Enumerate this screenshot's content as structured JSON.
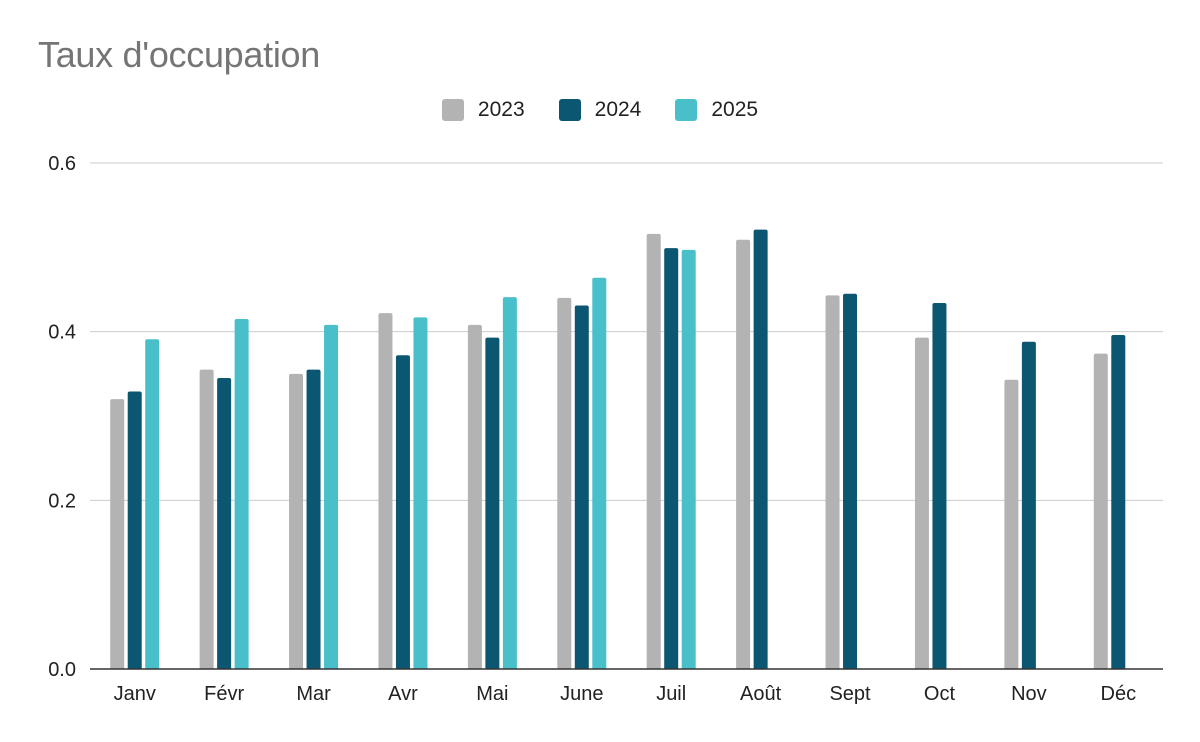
{
  "chart_data": {
    "type": "bar",
    "title": "Taux d'occupation",
    "categories": [
      "Janv",
      "Févr",
      "Mar",
      "Avr",
      "Mai",
      "June",
      "Juil",
      "Août",
      "Sept",
      "Oct",
      "Nov",
      "Déc"
    ],
    "series": [
      {
        "name": "2023",
        "color": "#b3b3b3",
        "values": [
          0.32,
          0.355,
          0.35,
          0.422,
          0.408,
          0.44,
          0.516,
          0.509,
          0.443,
          0.393,
          0.343,
          0.374
        ]
      },
      {
        "name": "2024",
        "color": "#0b5670",
        "values": [
          0.329,
          0.345,
          0.355,
          0.372,
          0.393,
          0.431,
          0.499,
          0.521,
          0.445,
          0.434,
          0.388,
          0.396
        ]
      },
      {
        "name": "2025",
        "color": "#49bfca",
        "values": [
          0.391,
          0.415,
          0.408,
          0.417,
          0.441,
          0.464,
          0.497,
          null,
          null,
          null,
          null,
          null
        ]
      }
    ],
    "ylim": [
      0,
      0.6
    ],
    "yticks": [
      "0.0",
      "0.2",
      "0.4",
      "0.6"
    ],
    "ytick_values": [
      0,
      0.2,
      0.4,
      0.6
    ],
    "grid": true,
    "legend_position": "top-center",
    "xlabel": "",
    "ylabel": ""
  }
}
